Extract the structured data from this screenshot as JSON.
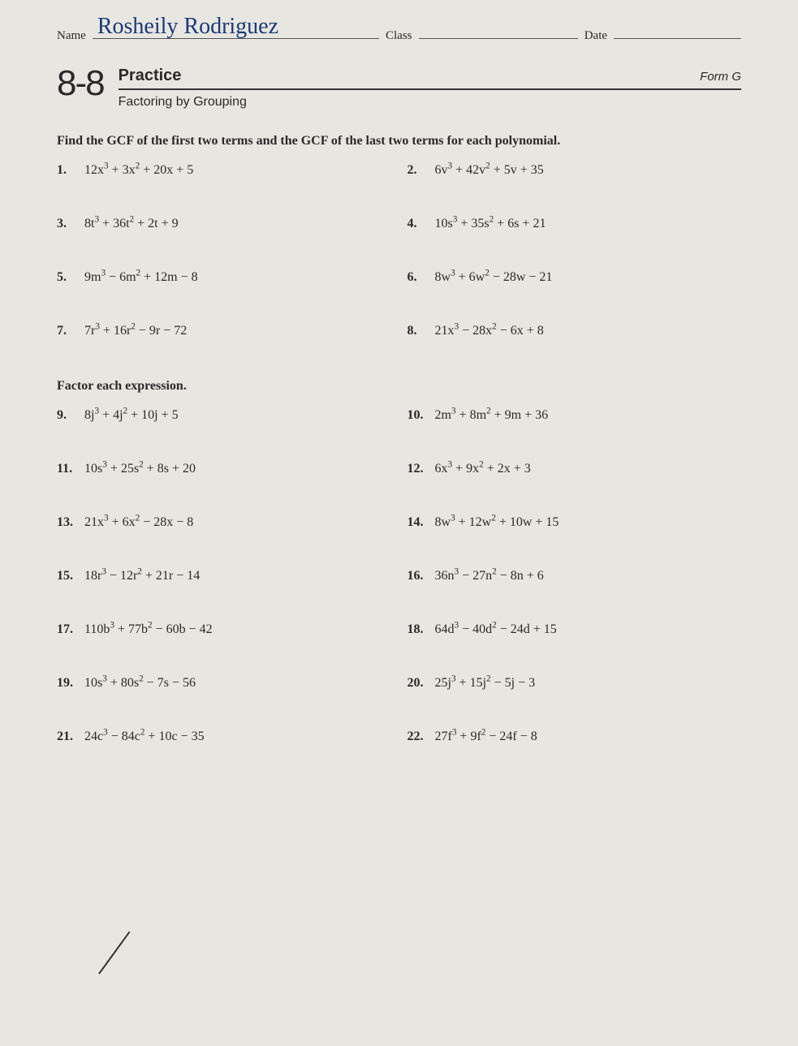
{
  "header": {
    "name_label": "Name",
    "name_value": "Rosheily Rodriguez",
    "class_label": "Class",
    "date_label": "Date"
  },
  "title": {
    "lesson": "8-8",
    "practice": "Practice",
    "form": "Form G",
    "subtitle": "Factoring by Grouping"
  },
  "instruction1": "Find the GCF of the first two terms and the GCF of the last two terms for each polynomial.",
  "instruction2": "Factor each expression.",
  "set1": [
    {
      "n": "1.",
      "e": "12x³ + 3x² + 20x + 5"
    },
    {
      "n": "2.",
      "e": "6v³ + 42v² + 5v + 35"
    },
    {
      "n": "3.",
      "e": "8t³ + 36t² + 2t + 9"
    },
    {
      "n": "4.",
      "e": "10s³ + 35s² + 6s + 21"
    },
    {
      "n": "5.",
      "e": "9m³ − 6m² + 12m − 8"
    },
    {
      "n": "6.",
      "e": "8w³ + 6w² − 28w − 21"
    },
    {
      "n": "7.",
      "e": "7r³ + 16r² − 9r − 72"
    },
    {
      "n": "8.",
      "e": "21x³ − 28x² − 6x + 8"
    }
  ],
  "set2": [
    {
      "n": "9.",
      "e": "8j³ + 4j² + 10j + 5"
    },
    {
      "n": "10.",
      "e": "2m³ + 8m² + 9m + 36"
    },
    {
      "n": "11.",
      "e": "10s³ + 25s² + 8s + 20"
    },
    {
      "n": "12.",
      "e": "6x³ + 9x² + 2x + 3"
    },
    {
      "n": "13.",
      "e": "21x³ + 6x² − 28x − 8"
    },
    {
      "n": "14.",
      "e": "8w³ + 12w² + 10w + 15"
    },
    {
      "n": "15.",
      "e": "18r³ − 12r² + 21r − 14"
    },
    {
      "n": "16.",
      "e": "36n³ − 27n² − 8n + 6"
    },
    {
      "n": "17.",
      "e": "110b³ + 77b² − 60b − 42"
    },
    {
      "n": "18.",
      "e": "64d³ − 40d² − 24d + 15"
    },
    {
      "n": "19.",
      "e": "10s³ + 80s² − 7s − 56"
    },
    {
      "n": "20.",
      "e": "25j³ + 15j² − 5j − 3"
    },
    {
      "n": "21.",
      "e": "24c³ − 84c² + 10c − 35"
    },
    {
      "n": "22.",
      "e": "27f³ + 9f² − 24f − 8"
    }
  ]
}
